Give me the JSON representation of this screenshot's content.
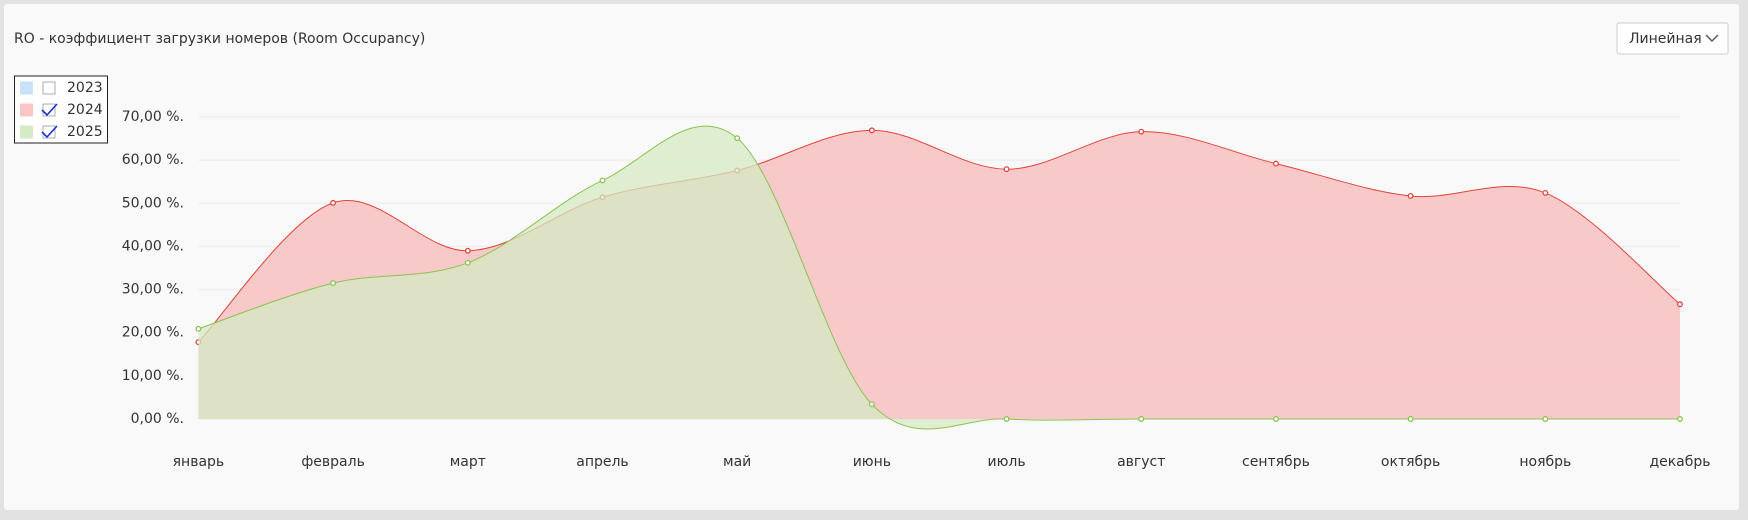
{
  "header": {
    "title": "RO - коэффициент загрузки номеров (Room Occupancy)",
    "dropdown": "Линейная"
  },
  "chart_data": {
    "type": "area",
    "categories": [
      "январь",
      "февраль",
      "март",
      "апрель",
      "май",
      "июнь",
      "июль",
      "август",
      "сентябрь",
      "октябрь",
      "ноябрь",
      "декабрь"
    ],
    "series": [
      {
        "name": "2023",
        "color": "#7fb6ea",
        "fill": "#c9e2f8",
        "visible": false,
        "values": [
          null,
          null,
          null,
          null,
          null,
          null,
          null,
          null,
          null,
          null,
          null,
          null
        ]
      },
      {
        "name": "2024",
        "color": "#e0453b",
        "fill": "#f8c6c6",
        "visible": true,
        "values": [
          17.8,
          50.1,
          39.0,
          51.4,
          57.6,
          66.9,
          57.9,
          66.6,
          59.2,
          51.7,
          52.4,
          26.6
        ]
      },
      {
        "name": "2025",
        "color": "#8cc152",
        "fill": "#d6eac3",
        "visible": true,
        "values": [
          20.9,
          31.5,
          36.2,
          55.3,
          65.1,
          3.4,
          0,
          0,
          0,
          0,
          0,
          0
        ]
      }
    ],
    "ylim": [
      0,
      70
    ],
    "yticks": [
      {
        "value": 0,
        "label": "0,00 %."
      },
      {
        "value": 10,
        "label": "10,00 %."
      },
      {
        "value": 20,
        "label": "20,00 %."
      },
      {
        "value": 30,
        "label": "30,00 %."
      },
      {
        "value": 40,
        "label": "40,00 %."
      },
      {
        "value": 50,
        "label": "50,00 %."
      },
      {
        "value": 60,
        "label": "60,00 %."
      },
      {
        "value": 70,
        "label": "70,00 %."
      }
    ],
    "grid": true,
    "legend": "top-left"
  }
}
